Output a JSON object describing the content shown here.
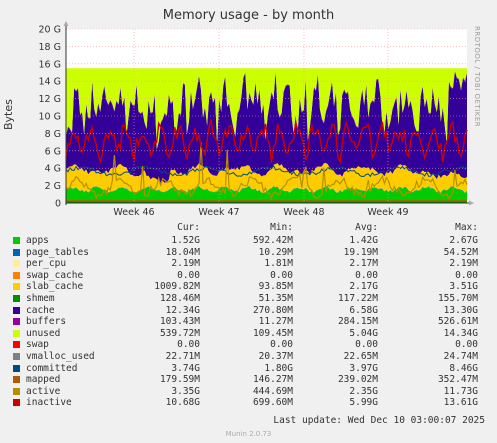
{
  "chart_data": {
    "type": "area",
    "title": "Memory usage - by month",
    "ylabel": "Bytes",
    "side_label": "RRDTOOL / TOBI OETIKER",
    "y_ticks": [
      "0",
      "2 G",
      "4 G",
      "6 G",
      "8 G",
      "10 G",
      "12 G",
      "14 G",
      "16 G",
      "18 G",
      "20 G"
    ],
    "ylim": [
      0,
      20
    ],
    "x_ticks": [
      "Week 46",
      "Week 47",
      "Week 48",
      "Week 49"
    ],
    "grid": true,
    "legend_placement": "bottom",
    "stack_order": [
      "apps",
      "page_tables",
      "per_cpu",
      "swap_cache",
      "slab_cache",
      "cache",
      "buffers",
      "unused"
    ],
    "line_series": [
      "shmem",
      "swap",
      "vmalloc_used",
      "committed",
      "mapped",
      "active",
      "inactive"
    ],
    "total_memory_gb": 15.6,
    "columns": [
      "Cur:",
      "Min:",
      "Avg:",
      "Max:"
    ],
    "series": [
      {
        "name": "apps",
        "color": "#00cc00",
        "cur": "1.52G",
        "min": "592.42M",
        "avg": "1.42G",
        "max": "2.67G"
      },
      {
        "name": "page_tables",
        "color": "#0066b3",
        "cur": "18.04M",
        "min": "10.29M",
        "avg": "19.19M",
        "max": "54.52M"
      },
      {
        "name": "per_cpu",
        "color": "#ffee99",
        "cur": "2.19M",
        "min": "1.81M",
        "avg": "2.17M",
        "max": "2.19M"
      },
      {
        "name": "swap_cache",
        "color": "#ff8000",
        "cur": "0.00",
        "min": "0.00",
        "avg": "0.00",
        "max": "0.00"
      },
      {
        "name": "slab_cache",
        "color": "#ffcc00",
        "cur": "1009.82M",
        "min": "93.85M",
        "avg": "2.17G",
        "max": "3.51G"
      },
      {
        "name": "shmem",
        "color": "#008f00",
        "cur": "128.46M",
        "min": "51.35M",
        "avg": "117.22M",
        "max": "155.70M"
      },
      {
        "name": "cache",
        "color": "#330099",
        "cur": "12.34G",
        "min": "270.80M",
        "avg": "6.58G",
        "max": "13.30G"
      },
      {
        "name": "buffers",
        "color": "#990099",
        "cur": "103.43M",
        "min": "11.27M",
        "avg": "284.15M",
        "max": "526.61M"
      },
      {
        "name": "unused",
        "color": "#ccff00",
        "cur": "539.72M",
        "min": "109.45M",
        "avg": "5.04G",
        "max": "14.34G"
      },
      {
        "name": "swap",
        "color": "#ff0000",
        "cur": "0.00",
        "min": "0.00",
        "avg": "0.00",
        "max": "0.00"
      },
      {
        "name": "vmalloc_used",
        "color": "#808080",
        "cur": "22.71M",
        "min": "20.37M",
        "avg": "22.65M",
        "max": "24.74M"
      },
      {
        "name": "committed",
        "color": "#004b80",
        "cur": "3.74G",
        "min": "1.80G",
        "avg": "3.97G",
        "max": "8.46G"
      },
      {
        "name": "mapped",
        "color": "#b35a00",
        "cur": "179.59M",
        "min": "146.27M",
        "avg": "239.02M",
        "max": "352.47M"
      },
      {
        "name": "active",
        "color": "#b38f00",
        "cur": "3.35G",
        "min": "444.69M",
        "avg": "2.35G",
        "max": "11.73G"
      },
      {
        "name": "inactive",
        "color": "#cc0000",
        "cur": "10.68G",
        "min": "699.60M",
        "avg": "5.99G",
        "max": "13.61G"
      }
    ]
  },
  "footer": {
    "last_update": "Last update:  Wed Dec 10 03:00:07 2025",
    "munin": "Munin 2.0.73"
  }
}
